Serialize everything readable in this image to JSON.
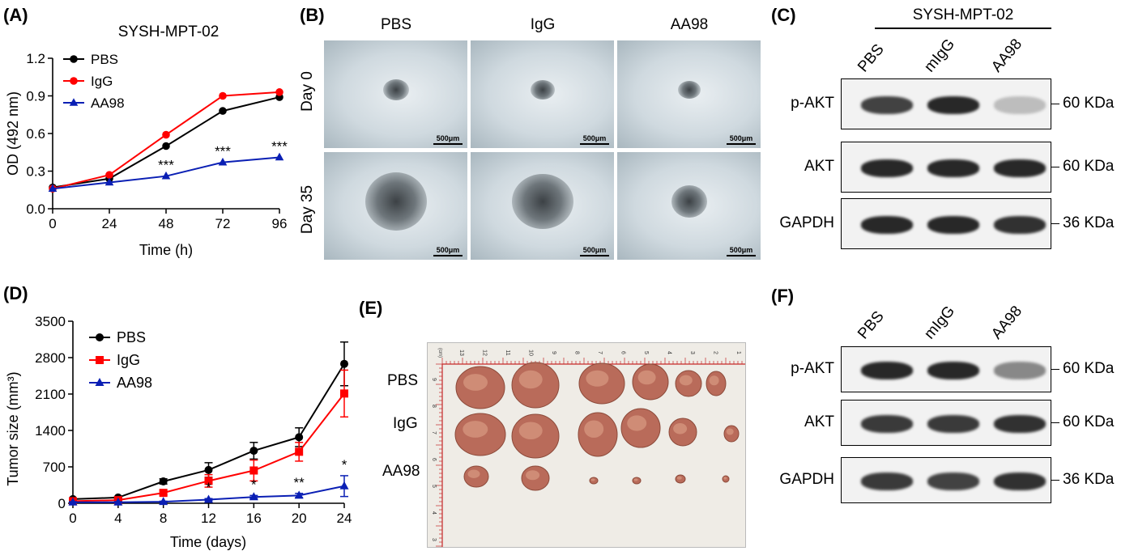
{
  "panel_labels": {
    "a": "(A)",
    "b": "(B)",
    "c": "(C)",
    "d": "(D)",
    "e": "(E)",
    "f": "(F)"
  },
  "chart_data": [
    {
      "type": "line",
      "title": "SYSH-MPT-02",
      "xlabel": "Time (h)",
      "ylabel": "OD (492 nm)",
      "x": [
        0,
        24,
        48,
        72,
        96
      ],
      "xlim": [
        0,
        96
      ],
      "ylim": [
        0,
        1.2
      ],
      "xticks": [
        "0",
        "24",
        "48",
        "72",
        "96"
      ],
      "yticks": [
        "0.0",
        "0.3",
        "0.6",
        "0.9",
        "1.2"
      ],
      "legend_position": "top-left",
      "series": [
        {
          "name": "PBS",
          "color": "#000000",
          "marker": "circle",
          "values": [
            0.17,
            0.24,
            0.5,
            0.78,
            0.89
          ]
        },
        {
          "name": "IgG",
          "color": "#ff0000",
          "marker": "circle",
          "values": [
            0.16,
            0.27,
            0.59,
            0.9,
            0.93
          ]
        },
        {
          "name": "AA98",
          "color": "#0a1fb4",
          "marker": "triangle",
          "values": [
            0.16,
            0.21,
            0.26,
            0.37,
            0.41
          ]
        }
      ],
      "annotations": [
        {
          "x": 48,
          "y": 0.26,
          "text": "***"
        },
        {
          "x": 72,
          "y": 0.37,
          "text": "***"
        },
        {
          "x": 96,
          "y": 0.41,
          "text": "***"
        }
      ]
    },
    {
      "type": "line",
      "title": "",
      "xlabel": "Time (days)",
      "ylabel": "Tumor size (mm³)",
      "x": [
        0,
        4,
        8,
        12,
        16,
        20,
        24
      ],
      "xlim": [
        0,
        24
      ],
      "ylim": [
        0,
        3500
      ],
      "xticks": [
        "0",
        "4",
        "8",
        "12",
        "16",
        "20",
        "24"
      ],
      "yticks": [
        "0",
        "700",
        "1400",
        "2100",
        "2800",
        "3500"
      ],
      "legend_position": "top-left",
      "series": [
        {
          "name": "PBS",
          "color": "#000000",
          "marker": "circle",
          "values": [
            80,
            110,
            420,
            640,
            1010,
            1270,
            2680
          ],
          "errors": [
            20,
            20,
            50,
            140,
            160,
            180,
            420
          ]
        },
        {
          "name": "IgG",
          "color": "#ff0000",
          "marker": "square",
          "values": [
            40,
            60,
            200,
            430,
            630,
            990,
            2110
          ],
          "errors": [
            15,
            15,
            40,
            120,
            200,
            180,
            450
          ]
        },
        {
          "name": "AA98",
          "color": "#0a1fb4",
          "marker": "triangle",
          "values": [
            20,
            20,
            30,
            70,
            120,
            150,
            330
          ],
          "errors": [
            10,
            10,
            10,
            20,
            30,
            40,
            200
          ]
        }
      ],
      "annotations": [
        {
          "x": 12,
          "y": 70,
          "text": "*"
        },
        {
          "x": 16,
          "y": 120,
          "text": "*"
        },
        {
          "x": 20,
          "y": 150,
          "text": "**"
        },
        {
          "x": 24,
          "y": 330,
          "text": "*"
        }
      ]
    }
  ],
  "panel_b": {
    "columns": [
      "PBS",
      "IgG",
      "AA98"
    ],
    "rows": [
      "Day 0",
      "Day 35"
    ],
    "scale_bar": "500μm"
  },
  "panel_c": {
    "title": "SYSH-MPT-02",
    "lanes": [
      "PBS",
      "mIgG",
      "AA98"
    ],
    "blots": [
      {
        "label": "p-AKT",
        "kda": "60 KDa",
        "intensity": [
          0.85,
          1.0,
          0.15
        ]
      },
      {
        "label": "AKT",
        "kda": "60 KDa",
        "intensity": [
          1.0,
          1.0,
          1.0
        ]
      },
      {
        "label": "GAPDH",
        "kda": "36 KDa",
        "intensity": [
          1.0,
          1.0,
          0.95
        ]
      }
    ]
  },
  "panel_e": {
    "rows": [
      "PBS",
      "IgG",
      "AA98"
    ],
    "ruler_numbers": [
      "13",
      "12",
      "11",
      "10",
      "9",
      "8",
      "7",
      "6",
      "5",
      "4",
      "3",
      "2",
      "1"
    ],
    "ruler_unit": "(cm)",
    "side_numbers": [
      "9",
      "8",
      "7",
      "6",
      "5",
      "4",
      "3"
    ]
  },
  "panel_f": {
    "lanes": [
      "PBS",
      "mIgG",
      "AA98"
    ],
    "blots": [
      {
        "label": "p-AKT",
        "kda": "60 KDa",
        "intensity": [
          1.0,
          1.0,
          0.45
        ]
      },
      {
        "label": "AKT",
        "kda": "60 KDa",
        "intensity": [
          0.9,
          0.9,
          0.95
        ]
      },
      {
        "label": "GAPDH",
        "kda": "36 KDa",
        "intensity": [
          0.9,
          0.85,
          0.95
        ]
      }
    ]
  }
}
